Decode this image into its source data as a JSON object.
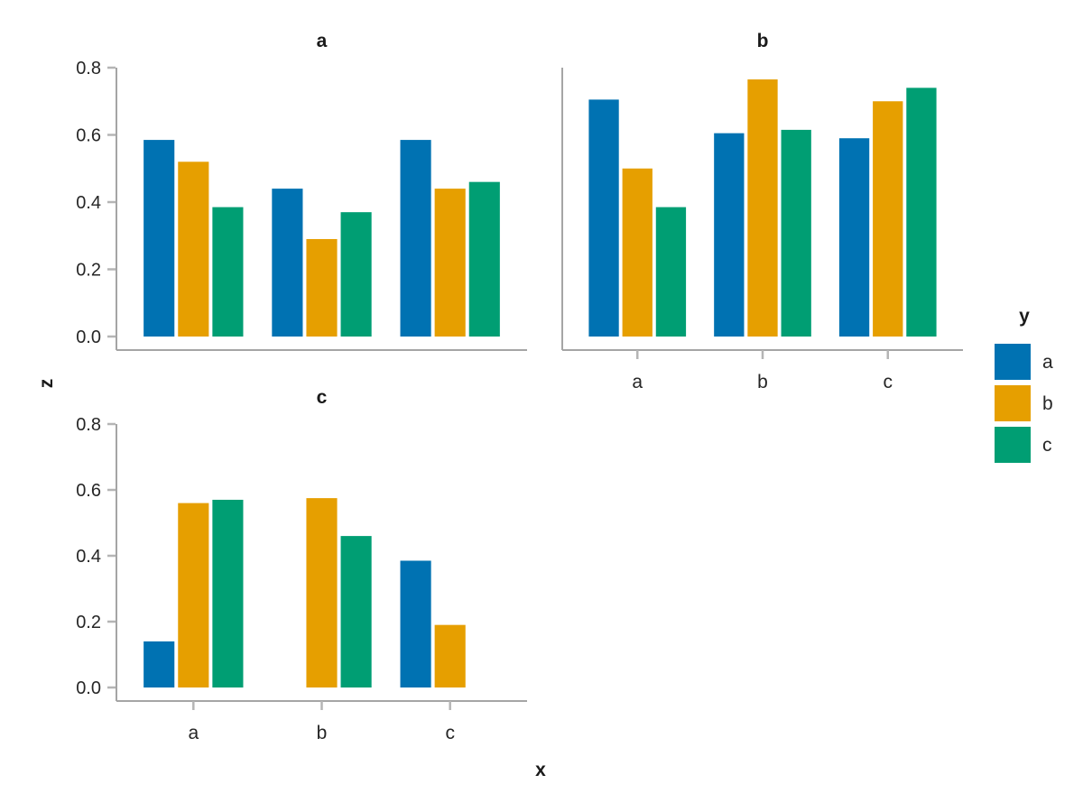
{
  "chart_data": {
    "type": "bar",
    "layout": "facet-grid-2x2",
    "xlabel": "x",
    "ylabel": "z",
    "legend_title": "y",
    "legend_position": "right",
    "ylim": [
      0,
      0.8
    ],
    "yticks": [
      0,
      0.2,
      0.4,
      0.6,
      0.8
    ],
    "ytick_labels": [
      "0.0",
      "0.2",
      "0.4",
      "0.6",
      "0.8"
    ],
    "categories": [
      "a",
      "b",
      "c"
    ],
    "series": [
      {
        "label": "a",
        "color": "#0072b2"
      },
      {
        "label": "b",
        "color": "#e69f00"
      },
      {
        "label": "c",
        "color": "#009e73"
      }
    ],
    "panels": [
      {
        "title": "a",
        "show_x_tick_labels": false,
        "show_y_tick_labels": true,
        "groups": [
          {
            "category": "a",
            "values": [
              0.585,
              0.52,
              0.385
            ]
          },
          {
            "category": "b",
            "values": [
              0.44,
              0.29,
              0.37
            ]
          },
          {
            "category": "c",
            "values": [
              0.585,
              0.44,
              0.46
            ]
          }
        ]
      },
      {
        "title": "b",
        "show_x_tick_labels": true,
        "show_y_tick_labels": false,
        "groups": [
          {
            "category": "a",
            "values": [
              0.705,
              0.5,
              0.385
            ]
          },
          {
            "category": "b",
            "values": [
              0.605,
              0.765,
              0.615
            ]
          },
          {
            "category": "c",
            "values": [
              0.59,
              0.7,
              0.74
            ]
          }
        ]
      },
      {
        "title": "c",
        "show_x_tick_labels": true,
        "show_y_tick_labels": true,
        "groups": [
          {
            "category": "a",
            "values": [
              0.14,
              0.56,
              0.57
            ]
          },
          {
            "category": "b",
            "values": [
              null,
              0.575,
              0.46
            ]
          },
          {
            "category": "c",
            "values": [
              0.385,
              0.19,
              null
            ]
          }
        ]
      }
    ],
    "style_colors": {
      "axis_line": "#a5a5a5",
      "tick_mark": "#b5b5b5",
      "tick_label": "#262626",
      "background": "#ffffff"
    }
  }
}
